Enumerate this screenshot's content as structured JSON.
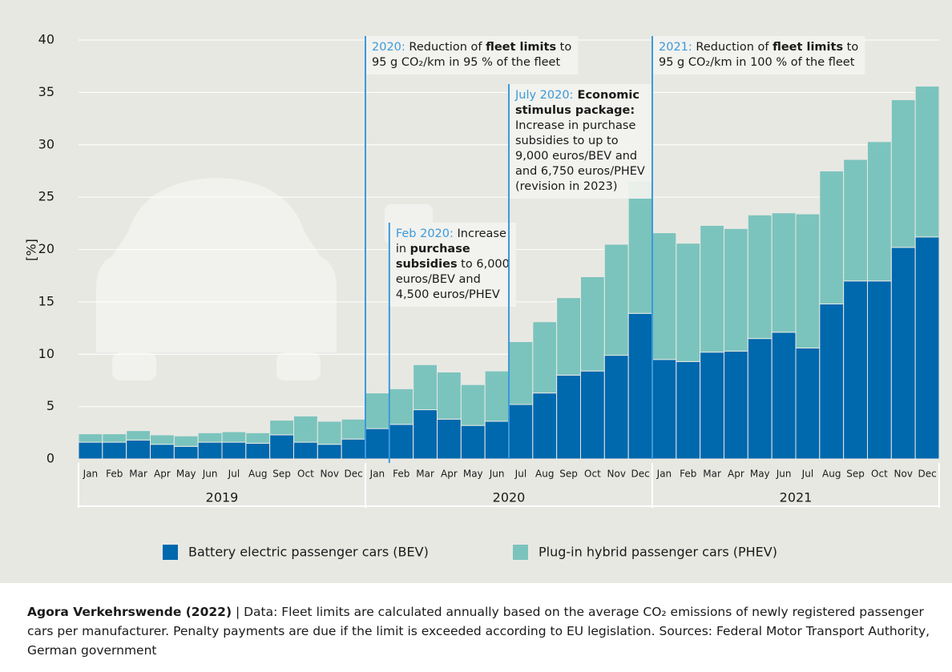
{
  "chart_data": {
    "type": "stacked_bar",
    "y_label": "[%]",
    "categories": [
      "Jan",
      "Feb",
      "Mar",
      "Apr",
      "May",
      "Jun",
      "Jul",
      "Aug",
      "Sep",
      "Oct",
      "Nov",
      "Dec",
      "Jan",
      "Feb",
      "Mar",
      "Apr",
      "May",
      "Jun",
      "Jul",
      "Aug",
      "Sep",
      "Oct",
      "Nov",
      "Dec",
      "Jan",
      "Feb",
      "Mar",
      "Apr",
      "May",
      "Jun",
      "Jul",
      "Aug",
      "Sep",
      "Oct",
      "Nov",
      "Dec"
    ],
    "groups": [
      "2019",
      "2020",
      "2021"
    ],
    "series": [
      {
        "name": "Battery electric passenger cars (BEV)",
        "color": "#0068ad",
        "values": [
          1.6,
          1.6,
          1.8,
          1.4,
          1.2,
          1.6,
          1.6,
          1.5,
          2.3,
          1.6,
          1.4,
          1.9,
          2.9,
          3.3,
          4.7,
          3.8,
          3.2,
          3.6,
          5.2,
          6.3,
          8.0,
          8.4,
          9.9,
          13.9,
          9.5,
          9.3,
          10.2,
          10.3,
          11.5,
          12.1,
          10.6,
          14.8,
          17.0,
          17.0,
          20.2,
          21.2
        ]
      },
      {
        "name": "Plug-in hybrid passenger cars (PHEV)",
        "color": "#7bc4bd",
        "values": [
          0.8,
          0.8,
          0.9,
          0.9,
          1.0,
          0.9,
          1.0,
          1.0,
          1.4,
          2.5,
          2.2,
          1.9,
          3.4,
          3.4,
          4.3,
          4.5,
          3.9,
          4.8,
          6.0,
          6.8,
          7.4,
          9.0,
          10.6,
          12.6,
          12.1,
          11.3,
          12.1,
          11.7,
          11.8,
          11.4,
          12.8,
          12.7,
          11.6,
          13.3,
          14.1,
          14.4
        ]
      }
    ],
    "ylim": [
      0,
      40
    ],
    "yticks": [
      0,
      5,
      10,
      15,
      20,
      25,
      30,
      35,
      40
    ],
    "grid": true,
    "annotations": [
      {
        "lines": [
          [
            {
              "text": "2020:",
              "accent": true
            },
            {
              "text": " Reduction of "
            },
            {
              "text": "fleet limits",
              "bold": true
            },
            {
              "text": " to"
            }
          ],
          [
            {
              "text": "95 g CO₂/km in 95 % of the fleet"
            }
          ]
        ]
      },
      {
        "lines": [
          [
            {
              "text": "Feb 2020:",
              "accent": true
            },
            {
              "text": " Increase"
            }
          ],
          [
            {
              "text": "in "
            },
            {
              "text": "purchase",
              "bold": true
            }
          ],
          [
            {
              "text": "subsidies",
              "bold": true
            },
            {
              "text": " to 6,000"
            }
          ],
          [
            {
              "text": "euros/BEV and"
            }
          ],
          [
            {
              "text": "4,500 euros/PHEV"
            }
          ]
        ]
      },
      {
        "lines": [
          [
            {
              "text": "July 2020:",
              "accent": true
            },
            {
              "text": " Economic",
              "bold": true
            }
          ],
          [
            {
              "text": "stimulus package:",
              "bold": true
            }
          ],
          [
            {
              "text": "Increase in purchase"
            }
          ],
          [
            {
              "text": "subsidies to up to"
            }
          ],
          [
            {
              "text": "9,000 euros/BEV and"
            }
          ],
          [
            {
              "text": "and 6,750 euros/PHEV"
            }
          ],
          [
            {
              "text": "(revision in 2023)"
            }
          ]
        ]
      },
      {
        "lines": [
          [
            {
              "text": "2021:",
              "accent": true
            },
            {
              "text": " Reduction of "
            },
            {
              "text": "fleet limits",
              "bold": true
            },
            {
              "text": " to"
            }
          ],
          [
            {
              "text": "95 g CO₂/km in 100 % of the fleet"
            }
          ]
        ]
      }
    ],
    "footer": [
      {
        "text": "Agora Verkehrswende (2022)",
        "bold": true
      },
      {
        "text": " | Data: Fleet limits are calculated annually based on the average CO₂ emissions of newly registered passenger cars per manufacturer. Penalty payments are due if the limit is exceeded according to EU legislation. Sources: Federal Motor Transport Authority, German government"
      }
    ]
  }
}
